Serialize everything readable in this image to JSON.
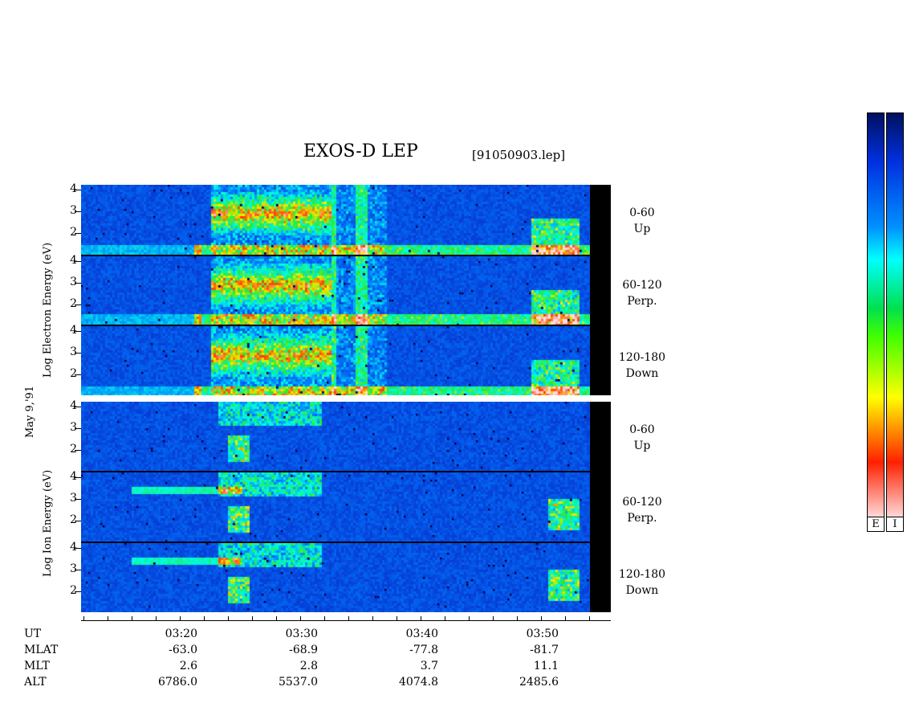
{
  "header": {
    "title": "EXOS-D LEP",
    "filename": "[91050903.lep]"
  },
  "date_label": "May  9,'91",
  "electron_label": "Log  Electron  Energy (eV)",
  "ion_label": "Log  Ion  Energy (eV)",
  "panels": [
    {
      "label1": "0-60",
      "label2": "Up"
    },
    {
      "label1": "60-120",
      "label2": "Perp."
    },
    {
      "label1": "120-180",
      "label2": "Down"
    },
    {
      "label1": "0-60",
      "label2": "Up"
    },
    {
      "label1": "60-120",
      "label2": "Perp."
    },
    {
      "label1": "120-180",
      "label2": "Down"
    }
  ],
  "yticks": [
    "4",
    "3",
    "2"
  ],
  "footer": {
    "row_labels": [
      "UT",
      "MLAT",
      "MLT",
      "ALT"
    ],
    "columns": [
      {
        "ut": "03:20",
        "mlat": "-63.0",
        "mlt": "2.6",
        "alt": "6786.0"
      },
      {
        "ut": "03:30",
        "mlat": "-68.9",
        "mlt": "2.8",
        "alt": "5537.0"
      },
      {
        "ut": "03:40",
        "mlat": "-77.8",
        "mlt": "3.7",
        "alt": "4074.8"
      },
      {
        "ut": "03:50",
        "mlat": "-81.7",
        "mlt": "11.1",
        "alt": "2485.6"
      }
    ]
  },
  "colorbar": {
    "labels": [
      "E",
      "I"
    ]
  },
  "chart_data": {
    "type": "heatmap",
    "title": "EXOS-D LEP",
    "ylabel": "Log Energy (eV)",
    "ylim": [
      1,
      4.2
    ],
    "yticks": [
      2,
      3,
      4
    ],
    "x_ticks_ut": [
      "03:20",
      "03:30",
      "03:40",
      "03:50"
    ],
    "panels": [
      "Electron 0-60 Up",
      "Electron 60-120 Perp.",
      "Electron 120-180 Down",
      "Ion 0-60 Up",
      "Ion 60-120 Perp.",
      "Ion 120-180 Down"
    ]
  }
}
